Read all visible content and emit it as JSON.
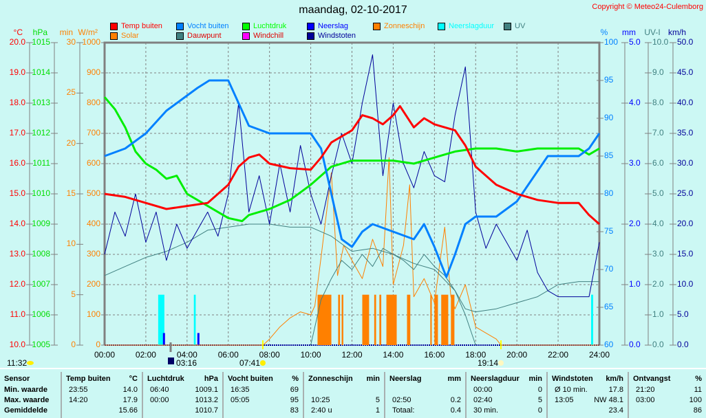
{
  "title": "maandag, 02-10-2017",
  "copyright": "Copyright © Meteo24-Culemborg",
  "legend": [
    {
      "label": "Temp buiten",
      "color": "#ff0000"
    },
    {
      "label": "Vocht buiten",
      "color": "#0080ff"
    },
    {
      "label": "Luchtdruk",
      "color": "#00ff00"
    },
    {
      "label": "Neerslag",
      "color": "#0000ff"
    },
    {
      "label": "Zonneschijn",
      "color": "#ff8000"
    },
    {
      "label": "Neerslagduur",
      "color": "#00ffff"
    },
    {
      "label": "UV",
      "color": "#408080"
    },
    {
      "label": "Solar",
      "color": "#ff8000"
    },
    {
      "label": "Dauwpunt",
      "color": "#408080"
    },
    {
      "label": "Windchill",
      "color": "#ff00ff"
    },
    {
      "label": "Windstoten",
      "color": "#000099"
    }
  ],
  "axes": {
    "left": [
      {
        "unit": "°C",
        "min": 10,
        "max": 20,
        "step": 1,
        "dec": 1,
        "color": "#ff0000"
      },
      {
        "unit": "hPa",
        "min": 1005,
        "max": 1015,
        "step": 1,
        "dec": 0,
        "color": "#00dd00"
      },
      {
        "unit": "min",
        "min": 0,
        "max": 30,
        "step": 5,
        "dec": 0,
        "color": "#ff8000"
      },
      {
        "unit": "W/m²",
        "min": 0,
        "max": 1000,
        "step": 100,
        "dec": 0,
        "color": "#ff8000"
      }
    ],
    "right": [
      {
        "unit": "%",
        "min": 60,
        "max": 100,
        "step": 5,
        "dec": 0,
        "color": "#0080ff"
      },
      {
        "unit": "mm",
        "min": 0,
        "max": 5,
        "step": 1,
        "dec": 1,
        "color": "#0000ff"
      },
      {
        "unit": "UV-I",
        "min": 0,
        "max": 10,
        "step": 1,
        "dec": 1,
        "color": "#408080"
      },
      {
        "unit": "km/h",
        "min": 0,
        "max": 50,
        "step": 5,
        "dec": 1,
        "color": "#000099"
      }
    ],
    "x_ticks": [
      "00:00",
      "02:00",
      "04:00",
      "06:00",
      "08:00",
      "10:00",
      "12:00",
      "14:00",
      "16:00",
      "18:00",
      "20:00",
      "22:00",
      "24:00"
    ]
  },
  "astro": [
    {
      "label": "11:32",
      "icon": "moonset-icon"
    },
    {
      "label": "03:16",
      "icon": "moon-phase-icon"
    },
    {
      "label": "07:41",
      "icon": "sunrise-icon"
    },
    {
      "label": "19:14",
      "icon": "sunset-icon"
    }
  ],
  "chart_data": {
    "type": "line",
    "title": "maandag, 02-10-2017",
    "x_unit": "hour",
    "xlim": [
      0,
      24
    ],
    "series": [
      {
        "name": "Temp buiten",
        "axis": "°C",
        "x": [
          0,
          1,
          2,
          3,
          4,
          5,
          6,
          6.5,
          7,
          7.5,
          8,
          9,
          10,
          10.5,
          11,
          12,
          12.5,
          13,
          13.5,
          14,
          14.33,
          15,
          15.5,
          16,
          17,
          17.5,
          18,
          19,
          20,
          21,
          22,
          23,
          23.5,
          24
        ],
        "values": [
          15.0,
          14.9,
          14.7,
          14.5,
          14.6,
          14.7,
          15.3,
          15.9,
          16.2,
          16.3,
          16.0,
          15.85,
          15.8,
          16.2,
          16.7,
          17.1,
          17.6,
          17.5,
          17.3,
          17.6,
          17.9,
          17.2,
          17.5,
          17.3,
          17.1,
          16.6,
          15.9,
          15.3,
          15.0,
          14.8,
          14.7,
          14.7,
          14.3,
          14.0
        ]
      },
      {
        "name": "Vocht buiten",
        "axis": "%",
        "x": [
          0,
          1,
          1.5,
          2,
          3,
          4,
          4.5,
          5.08,
          6,
          6.5,
          7,
          8,
          9,
          10,
          10.5,
          11,
          11.5,
          12,
          12.5,
          13,
          14,
          15,
          15.5,
          16,
          16.58,
          17,
          17.5,
          18,
          19,
          20,
          20.5,
          21,
          21.5,
          22,
          23,
          23.5,
          24
        ],
        "values": [
          85,
          86,
          87,
          88,
          91,
          93,
          94,
          95,
          95,
          92,
          89,
          88,
          88,
          88,
          86,
          80,
          74,
          73,
          75,
          76,
          75,
          74,
          76,
          73,
          69,
          72,
          76,
          77,
          77,
          79,
          81,
          83,
          85,
          85,
          85,
          86,
          88
        ]
      },
      {
        "name": "Luchtdruk",
        "axis": "hPa",
        "x": [
          0,
          0.5,
          1,
          1.5,
          2,
          2.5,
          3,
          3.5,
          4,
          5,
          6,
          6.67,
          7,
          8,
          9,
          10,
          11,
          12,
          13,
          14,
          15,
          16,
          17,
          18,
          19,
          20,
          21,
          22,
          23,
          23.5,
          24
        ],
        "values": [
          1013.2,
          1012.8,
          1012.2,
          1011.4,
          1011.0,
          1010.8,
          1010.5,
          1010.6,
          1010.0,
          1009.6,
          1009.2,
          1009.1,
          1009.3,
          1009.5,
          1009.8,
          1010.3,
          1010.9,
          1011.1,
          1011.1,
          1011.1,
          1011.0,
          1011.2,
          1011.4,
          1011.5,
          1011.5,
          1011.4,
          1011.5,
          1011.5,
          1011.5,
          1011.3,
          1011.5
        ]
      },
      {
        "name": "Dauwpunt",
        "axis": "°C",
        "x": [
          0,
          1,
          2,
          3,
          4,
          5,
          6,
          7,
          8,
          9,
          10,
          11,
          12,
          13,
          14,
          15,
          16,
          17,
          17.5,
          18,
          19,
          20,
          21,
          22,
          23,
          24
        ],
        "values": [
          12.3,
          12.6,
          12.9,
          13.1,
          13.4,
          13.8,
          13.9,
          14.0,
          14.0,
          13.9,
          13.9,
          13.6,
          13.1,
          13.2,
          13.0,
          12.7,
          12.5,
          11.8,
          11.2,
          11.1,
          11.2,
          11.4,
          11.6,
          12.0,
          12.1,
          12.1
        ]
      },
      {
        "name": "UV",
        "axis": "UV-I",
        "x": [
          10,
          10.5,
          11,
          11.5,
          12,
          12.5,
          13,
          13.5,
          14,
          14.5,
          15,
          15.5,
          16,
          16.5,
          17,
          17.5,
          18
        ],
        "values": [
          0,
          1.5,
          2.2,
          2.8,
          2.5,
          3.0,
          2.6,
          3.2,
          3.0,
          2.8,
          2.5,
          3.0,
          2.6,
          2.3,
          1.8,
          1.0,
          0
        ]
      },
      {
        "name": "Solar",
        "axis": "W/m²",
        "x": [
          0,
          7.69,
          8,
          8.5,
          9,
          9.5,
          10,
          10.2,
          10.5,
          11,
          11.3,
          11.6,
          12,
          12.5,
          13,
          13.5,
          13.8,
          14,
          14.5,
          14.8,
          15,
          15.5,
          16,
          16.5,
          16.8,
          17,
          17.5,
          18,
          18.5,
          19,
          19.23,
          24
        ],
        "values": [
          0,
          0,
          20,
          60,
          90,
          110,
          100,
          130,
          290,
          570,
          230,
          330,
          280,
          220,
          350,
          260,
          620,
          200,
          330,
          530,
          160,
          220,
          140,
          390,
          160,
          120,
          200,
          60,
          40,
          20,
          0,
          0
        ]
      },
      {
        "name": "Windstoten",
        "axis": "km/h",
        "x": [
          0,
          0.5,
          1,
          1.5,
          2,
          2.5,
          3,
          3.5,
          4,
          4.5,
          5,
          5.5,
          6,
          6.5,
          7,
          7.5,
          8,
          8.5,
          9,
          9.5,
          10,
          10.5,
          11,
          11.5,
          12,
          12.5,
          13,
          13.5,
          14,
          14.5,
          15,
          15.5,
          16,
          16.5,
          17,
          17.5,
          18,
          18.5,
          19,
          19.5,
          20,
          20.5,
          21,
          21.5,
          22,
          22.5,
          23,
          23.5,
          24
        ],
        "values": [
          15,
          22,
          18,
          25,
          17,
          22,
          14,
          20,
          16,
          19,
          22,
          18,
          25,
          40,
          22,
          28,
          20,
          30,
          22,
          33,
          25,
          20,
          28,
          35,
          30,
          40,
          48,
          28,
          40,
          30,
          26,
          32,
          28,
          27,
          38,
          46,
          22,
          16,
          20,
          17,
          14,
          19,
          12,
          9,
          8,
          8,
          8,
          8,
          17
        ]
      },
      {
        "name": "Neerslag",
        "axis": "mm",
        "bars": [
          {
            "x": 2.83,
            "value": 0.2
          },
          {
            "x": 4.5,
            "value": 0.2
          }
        ]
      },
      {
        "name": "Zonneschijn",
        "axis": "min",
        "bars": [
          [
            10.33,
            11.0
          ],
          [
            11.33,
            11.42
          ],
          [
            11.5,
            11.58
          ],
          [
            12.5,
            12.83
          ],
          [
            13.08,
            13.17
          ],
          [
            13.33,
            13.42
          ],
          [
            13.67,
            14.17
          ],
          [
            14.67,
            14.83
          ],
          [
            15.8,
            15.87
          ],
          [
            16.0,
            16.17
          ],
          [
            16.33,
            16.67
          ],
          [
            16.8,
            16.97
          ]
        ],
        "value": 5
      },
      {
        "name": "Neerslagduur",
        "axis": "min",
        "bars": [
          [
            2.6,
            2.9
          ],
          [
            4.33,
            4.42
          ],
          [
            23.6,
            23.7
          ]
        ],
        "value": 5
      }
    ]
  },
  "table": {
    "columns": [
      {
        "h1": "Sensor",
        "h2": "",
        "rows": [
          [
            "Min. waarde",
            ""
          ],
          [
            "Max. waarde",
            ""
          ],
          [
            "Gemiddelde",
            ""
          ]
        ]
      },
      {
        "h1": "Temp buiten",
        "h2": "°C",
        "rows": [
          [
            "23:55",
            "14.0"
          ],
          [
            "14:20",
            "17.9"
          ],
          [
            "",
            "15.66"
          ]
        ]
      },
      {
        "h1": "Luchtdruk",
        "h2": "hPa",
        "rows": [
          [
            "06:40",
            "1009.1"
          ],
          [
            "00:00",
            "1013.2"
          ],
          [
            "",
            "1010.7"
          ]
        ]
      },
      {
        "h1": "Vocht buiten",
        "h2": "%",
        "rows": [
          [
            "16:35",
            "69"
          ],
          [
            "05:05",
            "95"
          ],
          [
            "",
            "83"
          ]
        ]
      },
      {
        "h1": "Zonneschijn",
        "h2": "min",
        "rows": [
          [
            "",
            ""
          ],
          [
            "10:25",
            "5"
          ],
          [
            "2:40 u",
            "1"
          ]
        ]
      },
      {
        "h1": "Neerslag",
        "h2": "mm",
        "rows": [
          [
            "",
            ""
          ],
          [
            "02:50",
            "0.2"
          ],
          [
            "Totaal:",
            "0.4"
          ]
        ]
      },
      {
        "h1": "Neerslagduur",
        "h2": "min",
        "rows": [
          [
            "00:00",
            "0"
          ],
          [
            "02:40",
            "5"
          ],
          [
            "30 min.",
            "0"
          ]
        ]
      },
      {
        "h1": "Windstoten",
        "h2": "km/h",
        "rows": [
          [
            "Ø 10 min.",
            "17.8"
          ],
          [
            "13:05",
            "NW 48.1"
          ],
          [
            "",
            "23.4"
          ]
        ]
      },
      {
        "h1": "Ontvangst",
        "h2": "%",
        "rows": [
          [
            "21:20",
            "11"
          ],
          [
            "03:00",
            "100"
          ],
          [
            "",
            "86"
          ]
        ]
      }
    ]
  }
}
